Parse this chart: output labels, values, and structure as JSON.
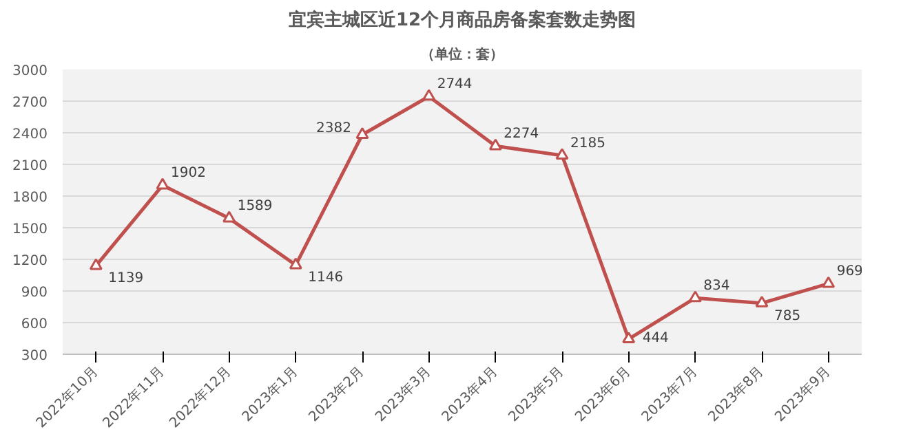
{
  "chart_data": {
    "type": "line",
    "title": "宜宾主城区近12个月商品房备案套数走势图",
    "subtitle": "（单位：套）",
    "categories": [
      "2022年10月",
      "2022年11月",
      "2022年12月",
      "2023年1月",
      "2023年2月",
      "2023年3月",
      "2023年4月",
      "2023年5月",
      "2023年6月",
      "2023年7月",
      "2023年8月",
      "2023年9月"
    ],
    "series": [
      {
        "color": "#c0504d",
        "values": [
          1139,
          1902,
          1589,
          1146,
          2382,
          2744,
          2274,
          2185,
          444,
          834,
          785,
          969
        ]
      }
    ],
    "ylim": [
      300,
      3000
    ],
    "yticks": [
      300,
      600,
      900,
      1200,
      1500,
      1800,
      2100,
      2400,
      2700,
      3000
    ],
    "grid": "y",
    "marker": "triangle",
    "line_style": "solid",
    "data_labels": true
  }
}
